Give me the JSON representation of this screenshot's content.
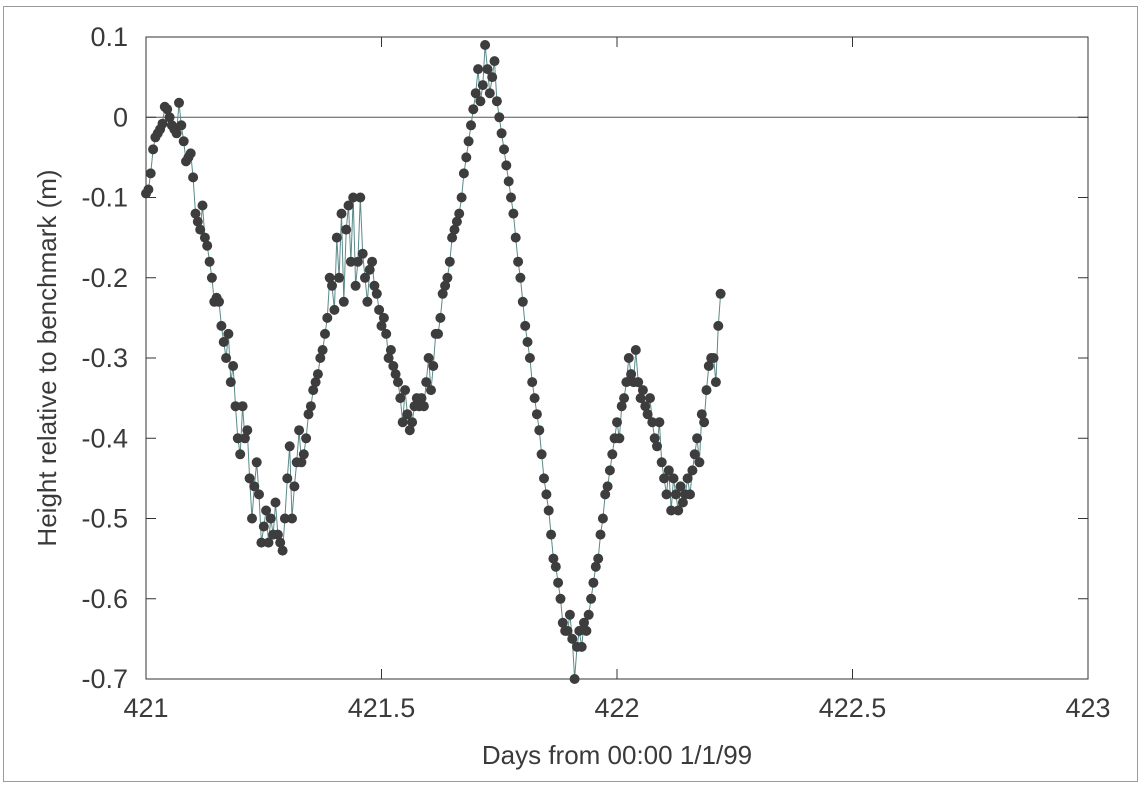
{
  "chart_data": {
    "type": "scatter",
    "title": "",
    "xlabel": "Days from 00:00 1/1/99",
    "ylabel": "Height relative to benchmark (m)",
    "xlim": [
      421,
      423
    ],
    "ylim": [
      -0.7,
      0.1
    ],
    "x_ticks": [
      421,
      421.5,
      422,
      422.5,
      423
    ],
    "x_tick_labels": [
      "421",
      "421.5",
      "422",
      "422.5",
      "423"
    ],
    "y_ticks": [
      0.1,
      0,
      -0.1,
      -0.2,
      -0.3,
      -0.4,
      -0.5,
      -0.6,
      -0.7
    ],
    "y_tick_labels": [
      "0.1",
      "0",
      "-0.1",
      "-0.2",
      "-0.3",
      "-0.4",
      "-0.5",
      "-0.6",
      "-0.7"
    ],
    "zero_line": true,
    "grid": false,
    "connect_points": true,
    "colors": {
      "marker": "#3d3d3d",
      "line": "#5a8a8a",
      "axis": "#333333"
    },
    "series": [
      {
        "points": [
          [
            421.0,
            -0.095
          ],
          [
            421.005,
            -0.09
          ],
          [
            421.01,
            -0.07
          ],
          [
            421.015,
            -0.04
          ],
          [
            421.02,
            -0.025
          ],
          [
            421.025,
            -0.02
          ],
          [
            421.03,
            -0.015
          ],
          [
            421.035,
            -0.008
          ],
          [
            421.04,
            0.013
          ],
          [
            421.045,
            0.01
          ],
          [
            421.05,
            0.0
          ],
          [
            421.055,
            -0.01
          ],
          [
            421.06,
            -0.015
          ],
          [
            421.065,
            -0.02
          ],
          [
            421.07,
            0.018
          ],
          [
            421.075,
            -0.01
          ],
          [
            421.08,
            -0.03
          ],
          [
            421.085,
            -0.055
          ],
          [
            421.09,
            -0.05
          ],
          [
            421.095,
            -0.045
          ],
          [
            421.1,
            -0.075
          ],
          [
            421.105,
            -0.12
          ],
          [
            421.11,
            -0.13
          ],
          [
            421.115,
            -0.14
          ],
          [
            421.12,
            -0.11
          ],
          [
            421.125,
            -0.15
          ],
          [
            421.13,
            -0.16
          ],
          [
            421.135,
            -0.18
          ],
          [
            421.14,
            -0.2
          ],
          [
            421.145,
            -0.23
          ],
          [
            421.15,
            -0.225
          ],
          [
            421.155,
            -0.23
          ],
          [
            421.16,
            -0.26
          ],
          [
            421.165,
            -0.28
          ],
          [
            421.17,
            -0.3
          ],
          [
            421.175,
            -0.27
          ],
          [
            421.18,
            -0.33
          ],
          [
            421.185,
            -0.31
          ],
          [
            421.19,
            -0.36
          ],
          [
            421.195,
            -0.4
          ],
          [
            421.2,
            -0.42
          ],
          [
            421.205,
            -0.36
          ],
          [
            421.21,
            -0.4
          ],
          [
            421.215,
            -0.39
          ],
          [
            421.22,
            -0.45
          ],
          [
            421.225,
            -0.5
          ],
          [
            421.23,
            -0.46
          ],
          [
            421.235,
            -0.43
          ],
          [
            421.24,
            -0.47
          ],
          [
            421.245,
            -0.53
          ],
          [
            421.25,
            -0.51
          ],
          [
            421.255,
            -0.49
          ],
          [
            421.26,
            -0.53
          ],
          [
            421.265,
            -0.5
          ],
          [
            421.27,
            -0.52
          ],
          [
            421.275,
            -0.48
          ],
          [
            421.28,
            -0.52
          ],
          [
            421.285,
            -0.53
          ],
          [
            421.29,
            -0.54
          ],
          [
            421.295,
            -0.5
          ],
          [
            421.3,
            -0.45
          ],
          [
            421.305,
            -0.41
          ],
          [
            421.31,
            -0.5
          ],
          [
            421.315,
            -0.46
          ],
          [
            421.32,
            -0.43
          ],
          [
            421.325,
            -0.39
          ],
          [
            421.33,
            -0.43
          ],
          [
            421.335,
            -0.42
          ],
          [
            421.34,
            -0.4
          ],
          [
            421.345,
            -0.37
          ],
          [
            421.35,
            -0.36
          ],
          [
            421.355,
            -0.34
          ],
          [
            421.36,
            -0.33
          ],
          [
            421.365,
            -0.32
          ],
          [
            421.37,
            -0.3
          ],
          [
            421.375,
            -0.29
          ],
          [
            421.38,
            -0.27
          ],
          [
            421.385,
            -0.25
          ],
          [
            421.39,
            -0.2
          ],
          [
            421.395,
            -0.21
          ],
          [
            421.4,
            -0.24
          ],
          [
            421.405,
            -0.15
          ],
          [
            421.41,
            -0.2
          ],
          [
            421.415,
            -0.12
          ],
          [
            421.42,
            -0.23
          ],
          [
            421.425,
            -0.14
          ],
          [
            421.43,
            -0.11
          ],
          [
            421.435,
            -0.18
          ],
          [
            421.44,
            -0.1
          ],
          [
            421.445,
            -0.21
          ],
          [
            421.45,
            -0.18
          ],
          [
            421.455,
            -0.1
          ],
          [
            421.46,
            -0.17
          ],
          [
            421.465,
            -0.2
          ],
          [
            421.47,
            -0.23
          ],
          [
            421.475,
            -0.19
          ],
          [
            421.48,
            -0.18
          ],
          [
            421.485,
            -0.21
          ],
          [
            421.49,
            -0.22
          ],
          [
            421.495,
            -0.24
          ],
          [
            421.5,
            -0.26
          ],
          [
            421.505,
            -0.25
          ],
          [
            421.51,
            -0.27
          ],
          [
            421.515,
            -0.3
          ],
          [
            421.52,
            -0.29
          ],
          [
            421.525,
            -0.31
          ],
          [
            421.53,
            -0.32
          ],
          [
            421.535,
            -0.33
          ],
          [
            421.54,
            -0.35
          ],
          [
            421.545,
            -0.38
          ],
          [
            421.55,
            -0.34
          ],
          [
            421.555,
            -0.37
          ],
          [
            421.56,
            -0.39
          ],
          [
            421.565,
            -0.38
          ],
          [
            421.57,
            -0.36
          ],
          [
            421.575,
            -0.35
          ],
          [
            421.58,
            -0.36
          ],
          [
            421.585,
            -0.35
          ],
          [
            421.59,
            -0.36
          ],
          [
            421.595,
            -0.33
          ],
          [
            421.6,
            -0.3
          ],
          [
            421.605,
            -0.34
          ],
          [
            421.61,
            -0.31
          ],
          [
            421.615,
            -0.27
          ],
          [
            421.62,
            -0.27
          ],
          [
            421.625,
            -0.25
          ],
          [
            421.63,
            -0.22
          ],
          [
            421.635,
            -0.21
          ],
          [
            421.64,
            -0.2
          ],
          [
            421.645,
            -0.18
          ],
          [
            421.65,
            -0.15
          ],
          [
            421.655,
            -0.14
          ],
          [
            421.66,
            -0.13
          ],
          [
            421.665,
            -0.12
          ],
          [
            421.67,
            -0.1
          ],
          [
            421.675,
            -0.07
          ],
          [
            421.68,
            -0.05
          ],
          [
            421.685,
            -0.03
          ],
          [
            421.69,
            -0.01
          ],
          [
            421.695,
            0.01
          ],
          [
            421.7,
            0.03
          ],
          [
            421.705,
            0.06
          ],
          [
            421.71,
            0.02
          ],
          [
            421.715,
            0.04
          ],
          [
            421.72,
            0.09
          ],
          [
            421.725,
            0.06
          ],
          [
            421.73,
            0.03
          ],
          [
            421.735,
            0.05
          ],
          [
            421.74,
            0.07
          ],
          [
            421.745,
            0.02
          ],
          [
            421.75,
            0.0
          ],
          [
            421.755,
            -0.02
          ],
          [
            421.76,
            -0.04
          ],
          [
            421.765,
            -0.06
          ],
          [
            421.77,
            -0.08
          ],
          [
            421.775,
            -0.1
          ],
          [
            421.78,
            -0.12
          ],
          [
            421.785,
            -0.15
          ],
          [
            421.79,
            -0.18
          ],
          [
            421.795,
            -0.2
          ],
          [
            421.8,
            -0.23
          ],
          [
            421.805,
            -0.26
          ],
          [
            421.81,
            -0.28
          ],
          [
            421.815,
            -0.3
          ],
          [
            421.82,
            -0.33
          ],
          [
            421.825,
            -0.35
          ],
          [
            421.83,
            -0.37
          ],
          [
            421.835,
            -0.39
          ],
          [
            421.84,
            -0.42
          ],
          [
            421.845,
            -0.45
          ],
          [
            421.85,
            -0.47
          ],
          [
            421.855,
            -0.49
          ],
          [
            421.86,
            -0.52
          ],
          [
            421.865,
            -0.55
          ],
          [
            421.87,
            -0.56
          ],
          [
            421.875,
            -0.58
          ],
          [
            421.88,
            -0.6
          ],
          [
            421.885,
            -0.63
          ],
          [
            421.89,
            -0.64
          ],
          [
            421.895,
            -0.64
          ],
          [
            421.9,
            -0.62
          ],
          [
            421.905,
            -0.65
          ],
          [
            421.91,
            -0.7
          ],
          [
            421.915,
            -0.66
          ],
          [
            421.92,
            -0.64
          ],
          [
            421.925,
            -0.66
          ],
          [
            421.93,
            -0.63
          ],
          [
            421.935,
            -0.64
          ],
          [
            421.94,
            -0.62
          ],
          [
            421.945,
            -0.6
          ],
          [
            421.95,
            -0.58
          ],
          [
            421.955,
            -0.56
          ],
          [
            421.96,
            -0.55
          ],
          [
            421.965,
            -0.52
          ],
          [
            421.97,
            -0.5
          ],
          [
            421.975,
            -0.47
          ],
          [
            421.98,
            -0.46
          ],
          [
            421.985,
            -0.44
          ],
          [
            421.99,
            -0.42
          ],
          [
            421.995,
            -0.4
          ],
          [
            422.0,
            -0.38
          ],
          [
            422.005,
            -0.4
          ],
          [
            422.01,
            -0.36
          ],
          [
            422.015,
            -0.35
          ],
          [
            422.02,
            -0.33
          ],
          [
            422.025,
            -0.3
          ],
          [
            422.03,
            -0.32
          ],
          [
            422.035,
            -0.33
          ],
          [
            422.04,
            -0.29
          ],
          [
            422.045,
            -0.33
          ],
          [
            422.05,
            -0.35
          ],
          [
            422.055,
            -0.34
          ],
          [
            422.06,
            -0.36
          ],
          [
            422.065,
            -0.37
          ],
          [
            422.07,
            -0.35
          ],
          [
            422.075,
            -0.38
          ],
          [
            422.08,
            -0.4
          ],
          [
            422.085,
            -0.41
          ],
          [
            422.09,
            -0.38
          ],
          [
            422.095,
            -0.43
          ],
          [
            422.1,
            -0.45
          ],
          [
            422.105,
            -0.47
          ],
          [
            422.11,
            -0.44
          ],
          [
            422.115,
            -0.49
          ],
          [
            422.12,
            -0.45
          ],
          [
            422.125,
            -0.47
          ],
          [
            422.13,
            -0.49
          ],
          [
            422.135,
            -0.46
          ],
          [
            422.14,
            -0.48
          ],
          [
            422.145,
            -0.47
          ],
          [
            422.15,
            -0.45
          ],
          [
            422.155,
            -0.47
          ],
          [
            422.16,
            -0.44
          ],
          [
            422.165,
            -0.42
          ],
          [
            422.17,
            -0.4
          ],
          [
            422.175,
            -0.43
          ],
          [
            422.18,
            -0.37
          ],
          [
            422.185,
            -0.38
          ],
          [
            422.19,
            -0.34
          ],
          [
            422.195,
            -0.31
          ],
          [
            422.2,
            -0.3
          ],
          [
            422.205,
            -0.3
          ],
          [
            422.21,
            -0.33
          ],
          [
            422.215,
            -0.26
          ],
          [
            422.22,
            -0.22
          ]
        ]
      }
    ]
  }
}
